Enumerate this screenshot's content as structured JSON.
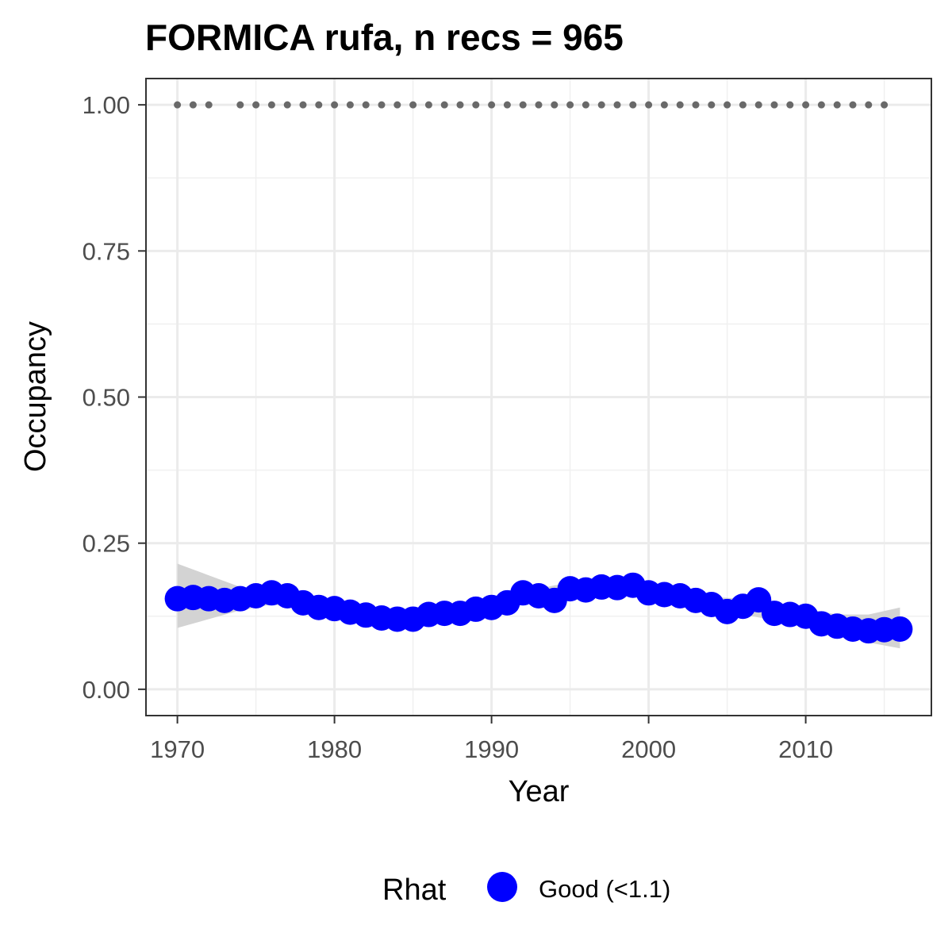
{
  "chart_data": {
    "type": "line",
    "title": "FORMICA rufa, n recs = 965",
    "xlabel": "Year",
    "ylabel": "Occupancy",
    "xlim": [
      1968,
      2018
    ],
    "ylim": [
      -0.045,
      1.045
    ],
    "x_ticks": [
      1970,
      1980,
      1990,
      2000,
      2010
    ],
    "x_tick_labels": [
      "1970",
      "1980",
      "1990",
      "2000",
      "2010"
    ],
    "y_ticks": [
      0,
      0.25,
      0.5,
      0.75,
      1.0
    ],
    "y_tick_labels": [
      "0.00",
      "0.25",
      "0.50",
      "0.75",
      "1.00"
    ],
    "grid": true,
    "legend": {
      "title": "Rhat",
      "position": "bottom",
      "entries": [
        {
          "label": "Good (<1.1)",
          "color": "#0000ff"
        }
      ]
    },
    "series": [
      {
        "name": "Good (<1.1)",
        "role": "occupancy estimate",
        "color": "#0000ff",
        "x": [
          1970,
          1971,
          1972,
          1973,
          1974,
          1975,
          1976,
          1977,
          1978,
          1979,
          1980,
          1981,
          1982,
          1983,
          1984,
          1985,
          1986,
          1987,
          1988,
          1989,
          1990,
          1991,
          1992,
          1993,
          1994,
          1995,
          1996,
          1997,
          1998,
          1999,
          2000,
          2001,
          2002,
          2003,
          2004,
          2005,
          2006,
          2007,
          2008,
          2009,
          2010,
          2011,
          2012,
          2013,
          2014,
          2015,
          2016
        ],
        "y": [
          0.155,
          0.157,
          0.155,
          0.152,
          0.155,
          0.16,
          0.165,
          0.16,
          0.148,
          0.14,
          0.138,
          0.132,
          0.127,
          0.122,
          0.12,
          0.12,
          0.128,
          0.13,
          0.13,
          0.137,
          0.14,
          0.148,
          0.165,
          0.16,
          0.152,
          0.172,
          0.17,
          0.175,
          0.174,
          0.178,
          0.165,
          0.162,
          0.16,
          0.152,
          0.145,
          0.133,
          0.142,
          0.153,
          0.13,
          0.128,
          0.125,
          0.112,
          0.108,
          0.103,
          0.1,
          0.102,
          0.103
        ]
      }
    ],
    "confidence_band": {
      "color": "#d3d3d3",
      "x": [
        1970,
        1972,
        1974,
        1976,
        1978,
        1980,
        1982,
        1984,
        1986,
        1988,
        1990,
        1992,
        1994,
        1996,
        1998,
        2000,
        2002,
        2004,
        2006,
        2008,
        2010,
        2012,
        2014,
        2016
      ],
      "lower": [
        0.105,
        0.12,
        0.135,
        0.145,
        0.138,
        0.128,
        0.118,
        0.112,
        0.115,
        0.12,
        0.13,
        0.145,
        0.155,
        0.163,
        0.165,
        0.158,
        0.148,
        0.135,
        0.128,
        0.118,
        0.108,
        0.095,
        0.08,
        0.07
      ],
      "upper": [
        0.215,
        0.195,
        0.175,
        0.172,
        0.162,
        0.15,
        0.14,
        0.132,
        0.135,
        0.14,
        0.152,
        0.165,
        0.178,
        0.185,
        0.188,
        0.182,
        0.172,
        0.158,
        0.155,
        0.148,
        0.138,
        0.128,
        0.128,
        0.14
      ]
    },
    "records": {
      "color": "#696969",
      "y": 1.0,
      "x": [
        1970,
        1971,
        1972,
        1974,
        1975,
        1976,
        1977,
        1978,
        1979,
        1980,
        1981,
        1982,
        1983,
        1984,
        1985,
        1986,
        1987,
        1988,
        1989,
        1990,
        1991,
        1992,
        1993,
        1994,
        1995,
        1996,
        1997,
        1998,
        1999,
        2000,
        2001,
        2002,
        2003,
        2004,
        2005,
        2006,
        2007,
        2008,
        2009,
        2010,
        2011,
        2012,
        2013,
        2014,
        2015
      ]
    }
  }
}
